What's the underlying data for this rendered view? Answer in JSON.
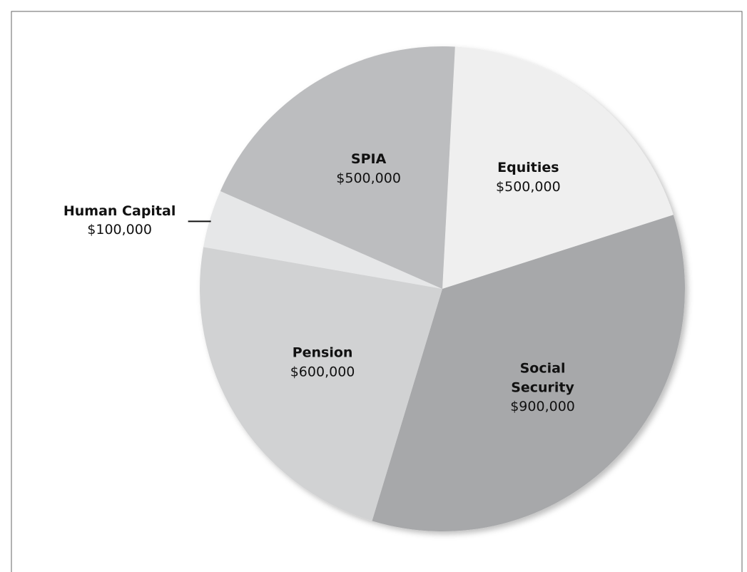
{
  "chart_data": {
    "type": "pie",
    "categories": [
      "Equities",
      "Social Security",
      "Pension",
      "Human Capital",
      "SPIA"
    ],
    "values": [
      500000,
      900000,
      600000,
      100000,
      500000
    ],
    "value_labels": [
      "$500,000",
      "$900,000",
      "$600,000",
      "$100,000",
      "$500,000"
    ],
    "colors": [
      "#efefef",
      "#a7a8aa",
      "#d1d2d3",
      "#e6e7e8",
      "#bcbdbf"
    ]
  }
}
